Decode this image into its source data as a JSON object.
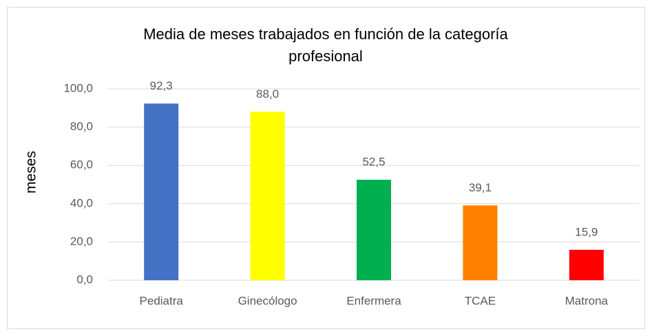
{
  "chart_data": {
    "type": "bar",
    "title": "Media de meses trabajados en función de la categoría profesional",
    "ylabel": "meses",
    "categories": [
      "Pediatra",
      "Ginecólogo",
      "Enfermera",
      "TCAE",
      "Matrona"
    ],
    "values": [
      92.3,
      88.0,
      52.5,
      39.1,
      15.9
    ],
    "value_labels": [
      "92,3",
      "88,0",
      "52,5",
      "39,1",
      "15,9"
    ],
    "colors": [
      "#4472c4",
      "#ffff00",
      "#00b050",
      "#ff8000",
      "#ff0000"
    ],
    "ylim": [
      0,
      100
    ],
    "yticks": [
      {
        "value": 0,
        "label": "0,0"
      },
      {
        "value": 20,
        "label": "20,0"
      },
      {
        "value": 40,
        "label": "40,0"
      },
      {
        "value": 60,
        "label": "60,0"
      },
      {
        "value": 80,
        "label": "80,0"
      },
      {
        "value": 100,
        "label": "100,0"
      }
    ],
    "grid": true
  }
}
